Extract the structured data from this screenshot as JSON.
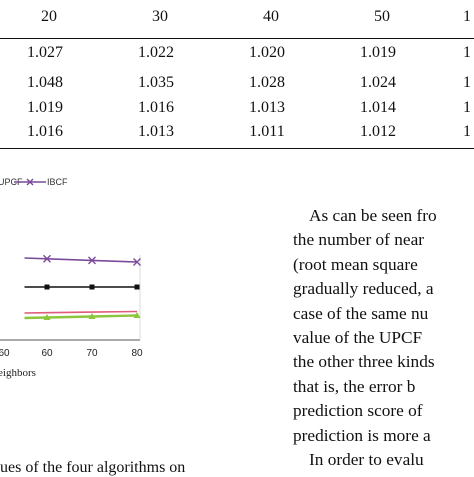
{
  "table": {
    "columns": [
      "20",
      "30",
      "40",
      "50",
      "1"
    ],
    "rows": [
      [
        "1.027",
        "1.022",
        "1.020",
        "1.019",
        "1"
      ],
      [
        "1.048",
        "1.035",
        "1.028",
        "1.024",
        "1"
      ],
      [
        "1.019",
        "1.016",
        "1.013",
        "1.014",
        "1"
      ],
      [
        "1.016",
        "1.013",
        "1.011",
        "1.012",
        "1"
      ]
    ]
  },
  "chart_data": {
    "type": "line",
    "legend_visible": [
      "UPCF",
      "IBCF"
    ],
    "x_ticks_visible": [
      "60",
      "60",
      "70",
      "80"
    ],
    "xlabel_partial": "eighbors",
    "series": [
      {
        "name": "IBCF",
        "color": "#7b4b9a",
        "marker": "x",
        "x": [
          55,
          60,
          70,
          80
        ],
        "approx_level": "top"
      },
      {
        "color": "#111111",
        "marker": "square",
        "x": [
          55,
          60,
          70,
          80
        ],
        "approx_level": "upper-middle"
      },
      {
        "color": "#e05a7a",
        "marker": "none",
        "x": [
          55,
          60,
          70,
          80
        ],
        "approx_level": "lower-middle"
      },
      {
        "color": "#8cc63f",
        "marker": "triangle",
        "x": [
          55,
          60,
          70,
          80
        ],
        "approx_level": "bottom"
      }
    ]
  },
  "paragraph": {
    "lines": [
      "As can be seen fro",
      "the number of near",
      "(root mean square",
      "gradually reduced, a",
      "case of the same nu",
      "value of the UPCF",
      "the other three kinds",
      "that is, the error b",
      "prediction score of",
      "prediction is more a",
      "In order to evalu"
    ]
  },
  "caption": {
    "text": "ues of the four algorithms on"
  }
}
